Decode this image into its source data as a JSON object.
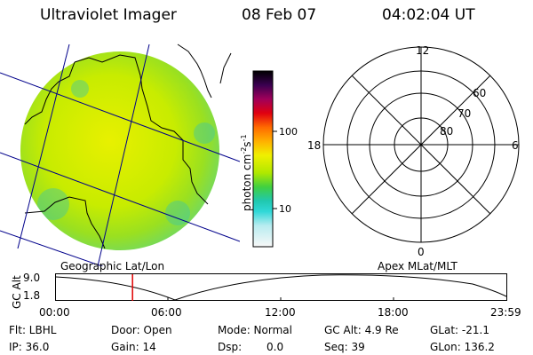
{
  "header": {
    "title": "Ultraviolet Imager",
    "date": "08 Feb 07",
    "time": "04:02:04 UT"
  },
  "colorbar": {
    "unit_label": "photon cm",
    "unit_exp1": "-2",
    "unit_mid": "s",
    "unit_exp2": "-1",
    "ticks": [
      "100",
      "10"
    ]
  },
  "polar_plot": {
    "mlt_labels": [
      "12",
      "18",
      "6",
      "0"
    ],
    "mlat_labels": [
      "60",
      "70",
      "80"
    ]
  },
  "map_label": "Geographic Lat/Lon",
  "apex_label": "Apex MLat/MLT",
  "altitude_plot": {
    "axis_title": "GC Alt",
    "y_ticks": [
      "9.0",
      "1.8"
    ],
    "x_ticks": [
      "00:00",
      "06:00",
      "12:00",
      "18:00",
      "23:59"
    ],
    "current_time_marker_fraction": 0.17
  },
  "info": {
    "flt": "Flt: LBHL",
    "ip": "IP: 36.0",
    "door": "Door: Open",
    "gain": "Gain: 14",
    "mode": "Mode: Normal",
    "dsp_label": "Dsp:",
    "dsp_value": "0.0",
    "gc_alt": "GC Alt: 4.9 Re",
    "seq": "Seq: 39",
    "glat": "GLat: -21.1",
    "glon": "GLon: 136.2"
  },
  "colors": {
    "marker": "#e00000",
    "grid_line": "#00008b"
  }
}
